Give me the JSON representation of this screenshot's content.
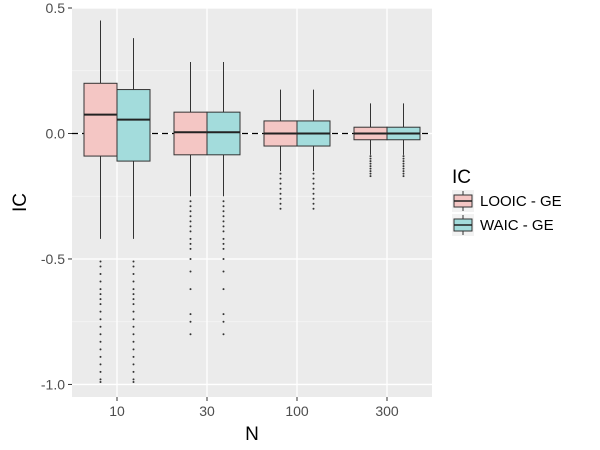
{
  "chart_data": {
    "type": "boxplot",
    "title": "",
    "xlabel": "N",
    "ylabel": "IC",
    "ylim": [
      -1.05,
      0.5
    ],
    "yticks": [
      -1.0,
      -0.5,
      0.0,
      0.5
    ],
    "ytick_labels": [
      "-1.0",
      "-0.5",
      "0.0",
      "0.5"
    ],
    "categories": [
      "10",
      "30",
      "100",
      "300"
    ],
    "reference_line": {
      "y": 0.0,
      "style": "dashed"
    },
    "grid": true,
    "legend": {
      "title": "IC",
      "position": "right"
    },
    "series": [
      {
        "name": "LOOIC - GE",
        "color": "#F4C6C4",
        "boxes": [
          {
            "min": -0.42,
            "q1": -0.09,
            "median": 0.075,
            "q3": 0.2,
            "max": 0.45,
            "outliers": [
              -0.51,
              -0.53,
              -0.56,
              -0.59,
              -0.62,
              -0.64,
              -0.66,
              -0.68,
              -0.71,
              -0.74,
              -0.77,
              -0.8,
              -0.83,
              -0.86,
              -0.89,
              -0.92,
              -0.95,
              -0.98,
              -0.99
            ]
          },
          {
            "min": -0.25,
            "q1": -0.085,
            "median": 0.005,
            "q3": 0.085,
            "max": 0.285,
            "outliers": [
              -0.27,
              -0.29,
              -0.31,
              -0.33,
              -0.35,
              -0.37,
              -0.39,
              -0.42,
              -0.44,
              -0.46,
              -0.5,
              -0.55,
              -0.62,
              -0.72,
              -0.75,
              -0.8
            ]
          },
          {
            "min": -0.15,
            "q1": -0.05,
            "median": 0.0,
            "q3": 0.05,
            "max": 0.175,
            "outliers": [
              -0.16,
              -0.18,
              -0.2,
              -0.22,
              -0.24,
              -0.26,
              -0.28,
              -0.3
            ]
          },
          {
            "min": -0.085,
            "q1": -0.025,
            "median": 0.0,
            "q3": 0.025,
            "max": 0.12,
            "outliers": [
              -0.09,
              -0.1,
              -0.11,
              -0.12,
              -0.13,
              -0.14,
              -0.15,
              -0.16,
              -0.17
            ]
          }
        ]
      },
      {
        "name": "WAIC - GE",
        "color": "#A3DCDC",
        "boxes": [
          {
            "min": -0.42,
            "q1": -0.11,
            "median": 0.055,
            "q3": 0.175,
            "max": 0.38,
            "outliers": [
              -0.51,
              -0.53,
              -0.56,
              -0.59,
              -0.62,
              -0.64,
              -0.66,
              -0.68,
              -0.71,
              -0.74,
              -0.77,
              -0.8,
              -0.83,
              -0.86,
              -0.89,
              -0.92,
              -0.95,
              -0.98,
              -0.99
            ]
          },
          {
            "min": -0.25,
            "q1": -0.085,
            "median": 0.005,
            "q3": 0.085,
            "max": 0.285,
            "outliers": [
              -0.27,
              -0.29,
              -0.31,
              -0.33,
              -0.35,
              -0.37,
              -0.39,
              -0.42,
              -0.44,
              -0.46,
              -0.5,
              -0.55,
              -0.62,
              -0.72,
              -0.75,
              -0.8
            ]
          },
          {
            "min": -0.15,
            "q1": -0.05,
            "median": 0.0,
            "q3": 0.05,
            "max": 0.175,
            "outliers": [
              -0.16,
              -0.18,
              -0.2,
              -0.22,
              -0.24,
              -0.26,
              -0.28,
              -0.3
            ]
          },
          {
            "min": -0.085,
            "q1": -0.025,
            "median": 0.0,
            "q3": 0.025,
            "max": 0.12,
            "outliers": [
              -0.09,
              -0.1,
              -0.11,
              -0.12,
              -0.13,
              -0.14,
              -0.15,
              -0.16,
              -0.17
            ]
          }
        ]
      }
    ]
  }
}
